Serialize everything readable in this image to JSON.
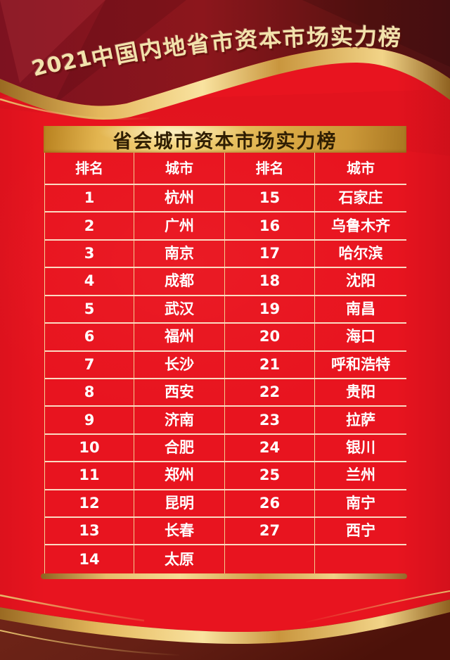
{
  "poster": {
    "main_title": "2021中国内地省市资本市场实力榜",
    "banner_title": "省会城市资本市场实力榜"
  },
  "table": {
    "columns": [
      "排名",
      "城市",
      "排名",
      "城市"
    ],
    "rows": [
      {
        "rank_left": "1",
        "city_left": "杭州",
        "rank_right": "15",
        "city_right": "石家庄"
      },
      {
        "rank_left": "2",
        "city_left": "广州",
        "rank_right": "16",
        "city_right": "乌鲁木齐"
      },
      {
        "rank_left": "3",
        "city_left": "南京",
        "rank_right": "17",
        "city_right": "哈尔滨"
      },
      {
        "rank_left": "4",
        "city_left": "成都",
        "rank_right": "18",
        "city_right": "沈阳"
      },
      {
        "rank_left": "5",
        "city_left": "武汉",
        "rank_right": "19",
        "city_right": "南昌"
      },
      {
        "rank_left": "6",
        "city_left": "福州",
        "rank_right": "20",
        "city_right": "海口"
      },
      {
        "rank_left": "7",
        "city_left": "长沙",
        "rank_right": "21",
        "city_right": "呼和浩特"
      },
      {
        "rank_left": "8",
        "city_left": "西安",
        "rank_right": "22",
        "city_right": "贵阳"
      },
      {
        "rank_left": "9",
        "city_left": "济南",
        "rank_right": "23",
        "city_right": "拉萨"
      },
      {
        "rank_left": "10",
        "city_left": "合肥",
        "rank_right": "24",
        "city_right": "银川"
      },
      {
        "rank_left": "11",
        "city_left": "郑州",
        "rank_right": "25",
        "city_right": "兰州"
      },
      {
        "rank_left": "12",
        "city_left": "昆明",
        "rank_right": "26",
        "city_right": "南宁"
      },
      {
        "rank_left": "13",
        "city_left": "长春",
        "rank_right": "27",
        "city_right": "西宁"
      },
      {
        "rank_left": "14",
        "city_left": "太原",
        "rank_right": "",
        "city_right": ""
      }
    ]
  },
  "chart_data": {
    "type": "table",
    "title": "2021中国内地省市资本市场实力榜",
    "subtitle": "省会城市资本市场实力榜",
    "columns": [
      "排名",
      "城市",
      "排名",
      "城市"
    ],
    "rows": [
      [
        "1",
        "杭州",
        "15",
        "石家庄"
      ],
      [
        "2",
        "广州",
        "16",
        "乌鲁木齐"
      ],
      [
        "3",
        "南京",
        "17",
        "哈尔滨"
      ],
      [
        "4",
        "成都",
        "18",
        "沈阳"
      ],
      [
        "5",
        "武汉",
        "19",
        "南昌"
      ],
      [
        "6",
        "福州",
        "20",
        "海口"
      ],
      [
        "7",
        "长沙",
        "21",
        "呼和浩特"
      ],
      [
        "8",
        "西安",
        "22",
        "贵阳"
      ],
      [
        "9",
        "济南",
        "23",
        "拉萨"
      ],
      [
        "10",
        "合肥",
        "24",
        "银川"
      ],
      [
        "11",
        "郑州",
        "25",
        "兰州"
      ],
      [
        "12",
        "昆明",
        "26",
        "南宁"
      ],
      [
        "13",
        "长春",
        "27",
        "西宁"
      ],
      [
        "14",
        "太原",
        "",
        ""
      ]
    ]
  },
  "colors": {
    "background_red": "#e8141f",
    "dark_maroon": "#7d1220",
    "gold": "#e9bd62",
    "gold_bright": "#f9e3a0",
    "banner_text": "#2f1e03",
    "table_text": "#ffffff",
    "title_cream": "#f2e2ac"
  }
}
